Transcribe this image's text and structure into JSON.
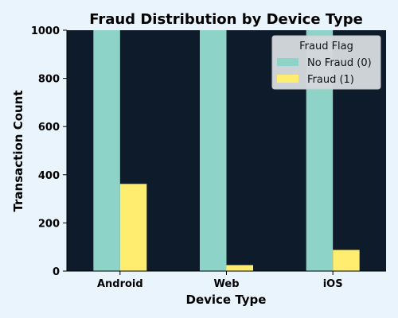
{
  "chart_data": {
    "type": "bar",
    "title": "Fraud Distribution by Device Type",
    "xlabel": "Device Type",
    "ylabel": "Transaction Count",
    "categories": [
      "Android",
      "Web",
      "iOS"
    ],
    "ylim": [
      0,
      1000
    ],
    "yticks": [
      0,
      200,
      400,
      600,
      800,
      1000
    ],
    "grid": false,
    "legend": {
      "title": "Fraud Flag",
      "placement": "top-right",
      "entries": [
        "No Fraud (0)",
        "Fraud (1)"
      ]
    },
    "series": [
      {
        "name": "No Fraud (0)",
        "color": "#8dd3c7",
        "values": [
          1000,
          1000,
          1000
        ]
      },
      {
        "name": "Fraud (1)",
        "color": "#ffed6f",
        "values": [
          362,
          25,
          88
        ]
      }
    ],
    "plot_background": "#0e1b2a"
  }
}
